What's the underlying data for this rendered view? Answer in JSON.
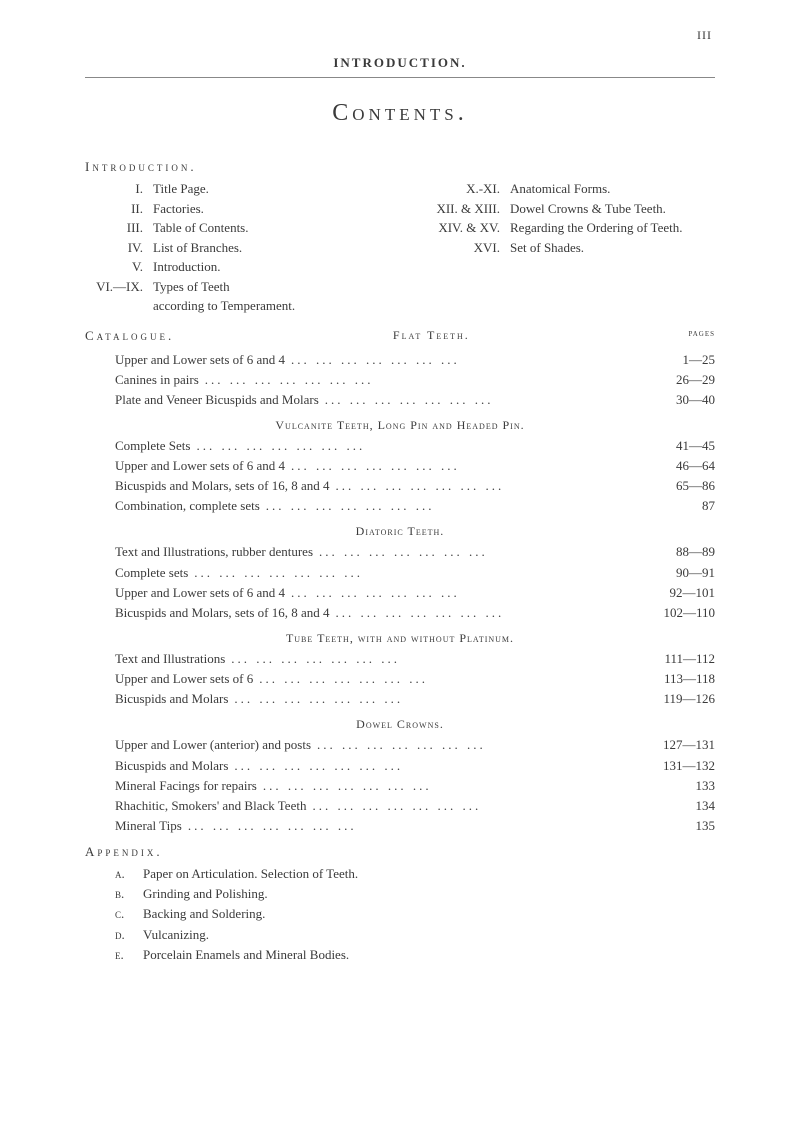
{
  "page_number": "III",
  "header_title": "INTRODUCTION.",
  "main_title": "Contents.",
  "introduction": {
    "heading": "Introduction.",
    "left_items": [
      {
        "num": "I.",
        "text": "Title Page."
      },
      {
        "num": "II.",
        "text": "Factories."
      },
      {
        "num": "III.",
        "text": "Table of Contents."
      },
      {
        "num": "IV.",
        "text": "List of Branches."
      },
      {
        "num": "V.",
        "text": "Introduction."
      },
      {
        "num": "VI.—IX.",
        "text": "Types of Teeth"
      }
    ],
    "left_extra": "according to Temperament.",
    "right_items": [
      {
        "num": "X.-XI.",
        "text": "Anatomical Forms."
      },
      {
        "num": "XII. & XIII.",
        "text": "Dowel Crowns & Tube Teeth."
      },
      {
        "num": "XIV. & XV.",
        "text": "Regarding the Ordering of Teeth."
      },
      {
        "num": "XVI.",
        "text": "Set of Shades."
      }
    ]
  },
  "catalogue": {
    "heading": "Catalogue.",
    "center": "Flat Teeth.",
    "pages_label": "pages"
  },
  "sections": [
    {
      "entries": [
        {
          "label": "Upper and Lower sets of 6 and 4",
          "pages": "1—25"
        },
        {
          "label": "Canines in pairs",
          "pages": "26—29"
        },
        {
          "label": "Plate and Veneer Bicuspids and Molars",
          "pages": "30—40"
        }
      ]
    },
    {
      "heading": "Vulcanite Teeth, Long Pin and Headed Pin.",
      "entries": [
        {
          "label": "Complete Sets",
          "pages": "41—45"
        },
        {
          "label": "Upper and Lower sets of 6 and 4",
          "pages": "46—64"
        },
        {
          "label": "Bicuspids and Molars, sets of 16, 8 and 4",
          "pages": "65—86"
        },
        {
          "label": "Combination, complete sets",
          "pages": "87"
        }
      ]
    },
    {
      "heading": "Diatoric Teeth.",
      "entries": [
        {
          "label": "Text and Illustrations, rubber dentures",
          "pages": "88—89"
        },
        {
          "label": "Complete sets",
          "pages": "90—91"
        },
        {
          "label": "Upper and Lower sets of 6 and 4",
          "pages": "92—101"
        },
        {
          "label": "Bicuspids and Molars, sets of 16, 8 and 4",
          "pages": "102—110"
        }
      ]
    },
    {
      "heading": "Tube Teeth, with and without Platinum.",
      "entries": [
        {
          "label": "Text and Illustrations",
          "pages": "111—112"
        },
        {
          "label": "Upper and Lower sets of 6",
          "pages": "113—118"
        },
        {
          "label": "Bicuspids and Molars",
          "pages": "119—126"
        }
      ]
    },
    {
      "heading": "Dowel Crowns.",
      "entries": [
        {
          "label": "Upper and Lower (anterior) and posts",
          "pages": "127—131"
        },
        {
          "label": "Bicuspids and Molars",
          "pages": "131—132"
        },
        {
          "label": "Mineral Facings for repairs",
          "pages": "133"
        },
        {
          "label": "Rhachitic, Smokers' and Black Teeth",
          "pages": "134"
        },
        {
          "label": "Mineral Tips",
          "pages": "135"
        }
      ]
    }
  ],
  "appendix": {
    "heading": "Appendix.",
    "items": [
      {
        "letter": "a.",
        "text": "Paper on Articulation.    Selection of Teeth."
      },
      {
        "letter": "b.",
        "text": "Grinding and Polishing."
      },
      {
        "letter": "c.",
        "text": "Backing and Soldering."
      },
      {
        "letter": "d.",
        "text": "Vulcanizing."
      },
      {
        "letter": "e.",
        "text": "Porcelain Enamels and Mineral Bodies."
      }
    ]
  },
  "dots": "...   ...   ...   ...   ...   ...   ..."
}
